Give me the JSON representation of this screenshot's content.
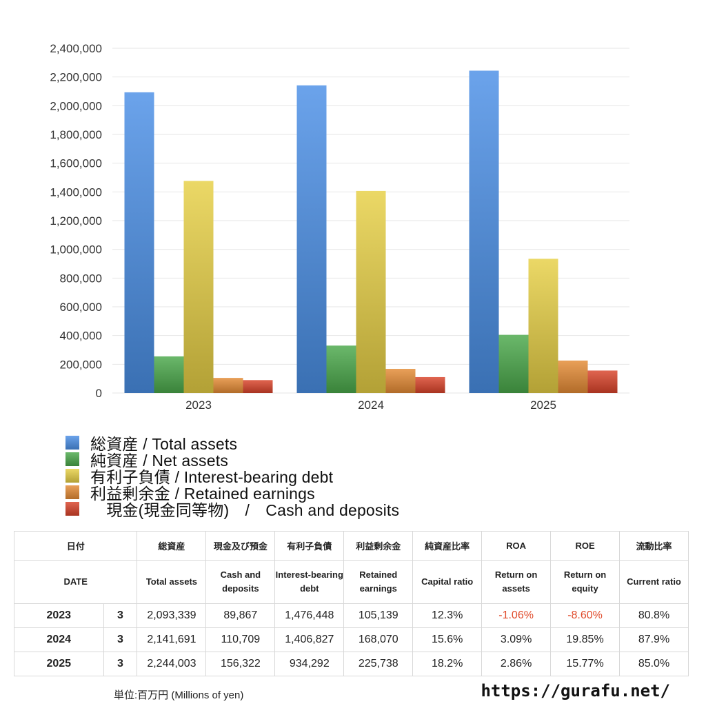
{
  "chart_data": {
    "type": "bar",
    "categories": [
      "2023",
      "2024",
      "2025"
    ],
    "ylim": [
      0,
      2400000
    ],
    "yticks": [
      "0",
      "200,000",
      "400,000",
      "600,000",
      "800,000",
      "1,000,000",
      "1,200,000",
      "1,400,000",
      "1,600,000",
      "1,800,000",
      "2,000,000",
      "2,200,000",
      "2,400,000"
    ],
    "grid": true,
    "legend_position": "bottom",
    "series": [
      {
        "name": "総資産 / Total assets",
        "values": [
          2093339,
          2141691,
          2244003
        ],
        "color": "#4a8fe6"
      },
      {
        "name": "純資産 / Net assets",
        "values": [
          255000,
          330000,
          405000
        ],
        "color": "#4aa84a"
      },
      {
        "name": "有利子負債 / Interest-bearing debt",
        "values": [
          1476448,
          1406827,
          934292
        ],
        "color": "#e6cf45"
      },
      {
        "name": "利益剰余金 / Retained earnings",
        "values": [
          105139,
          168070,
          225738
        ],
        "color": "#e48b35"
      },
      {
        "name": "　現金(現金同等物)　/　Cash and deposits",
        "values": [
          89867,
          110709,
          156322
        ],
        "color": "#d9432a"
      }
    ]
  },
  "table": {
    "header_jp": [
      "日付",
      "",
      "総資産",
      "現金及び預金",
      "有利子負債",
      "利益剰余金",
      "純資産比率",
      "ROA",
      "ROE",
      "流動比率"
    ],
    "header_en": [
      "DATE",
      "",
      "Total assets",
      "Cash and deposits",
      "Interest-bearing debt",
      "Retained earnings",
      "Capital ratio",
      "Return on assets",
      "Return on equity",
      "Current ratio"
    ],
    "rows": [
      {
        "year": "2023",
        "month": "3",
        "total_assets": "2,093,339",
        "cash": "89,867",
        "debt": "1,476,448",
        "retained": "105,139",
        "capital_ratio": "12.3%",
        "roa": "-1.06%",
        "roe": "-8.60%",
        "current_ratio": "80.8%"
      },
      {
        "year": "2024",
        "month": "3",
        "total_assets": "2,141,691",
        "cash": "110,709",
        "debt": "1,406,827",
        "retained": "168,070",
        "capital_ratio": "15.6%",
        "roa": "3.09%",
        "roe": "19.85%",
        "current_ratio": "87.9%"
      },
      {
        "year": "2025",
        "month": "3",
        "total_assets": "2,244,003",
        "cash": "156,322",
        "debt": "934,292",
        "retained": "225,738",
        "capital_ratio": "18.2%",
        "roa": "2.86%",
        "roe": "15.77%",
        "current_ratio": "85.0%"
      }
    ]
  },
  "footer": {
    "unit": "単位:百万円 (Millions of yen)",
    "url": "https://gurafu.net/"
  }
}
